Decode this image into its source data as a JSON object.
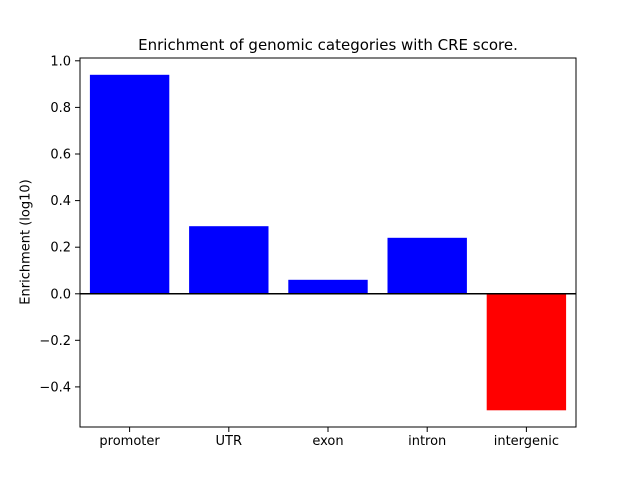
{
  "figure": {
    "background": "#ffffff",
    "axis_color": "#000000"
  },
  "chart_data": {
    "type": "bar",
    "title": "Enrichment of genomic categories with CRE score.",
    "xlabel": "",
    "ylabel": "Enrichment (log10)",
    "categories": [
      "promoter",
      "UTR",
      "exon",
      "intron",
      "intergenic"
    ],
    "values": [
      0.94,
      0.29,
      0.06,
      0.24,
      -0.5
    ],
    "bar_colors": [
      "#0000ff",
      "#0000ff",
      "#0000ff",
      "#0000ff",
      "#ff0000"
    ],
    "ylim": [
      -0.572,
      1.012
    ],
    "yticks": [
      -0.4,
      -0.2,
      0.0,
      0.2,
      0.4,
      0.6,
      0.8,
      1.0
    ],
    "zero_line": true,
    "grid": false,
    "legend": "none"
  }
}
